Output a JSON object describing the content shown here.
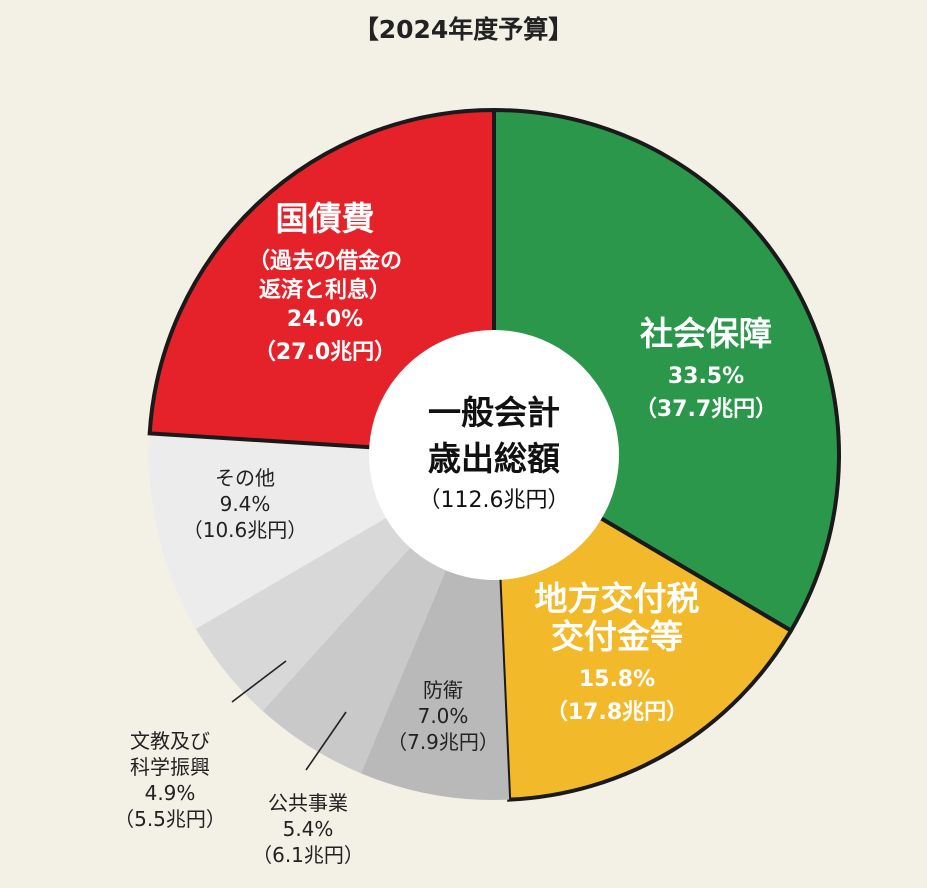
{
  "chart_data": {
    "type": "pie",
    "title": "【2024年度予算】",
    "center": {
      "line1": "一般会計",
      "line2": "歳出総額",
      "amount": "（112.6兆円）"
    },
    "total": 112.6,
    "unit": "兆円",
    "slices": [
      {
        "name_lines": [
          "社会保障"
        ],
        "percent": 33.5,
        "percent_label": "33.5%",
        "value": 37.7,
        "value_label": "（37.7兆円）",
        "color": "#2a974a"
      },
      {
        "name_lines": [
          "地方交付税",
          "交付金等"
        ],
        "percent": 15.8,
        "percent_label": "15.8%",
        "value": 17.8,
        "value_label": "（17.8兆円）",
        "color": "#f2b92b"
      },
      {
        "name_lines": [
          "防衛"
        ],
        "percent": 7.0,
        "percent_label": "7.0%",
        "value": 7.9,
        "value_label": "（7.9兆円）",
        "color": "#b9b9b9"
      },
      {
        "name_lines": [
          "公共事業"
        ],
        "percent": 5.4,
        "percent_label": "5.4%",
        "value": 6.1,
        "value_label": "（6.1兆円）",
        "color": "#c9c9c9"
      },
      {
        "name_lines": [
          "文教及び",
          "科学振興"
        ],
        "percent": 4.9,
        "percent_label": "4.9%",
        "value": 5.5,
        "value_label": "（5.5兆円）",
        "color": "#d8d8d8"
      },
      {
        "name_lines": [
          "その他"
        ],
        "percent": 9.4,
        "percent_label": "9.4%",
        "value": 10.6,
        "value_label": "（10.6兆円）",
        "color": "#ececec"
      },
      {
        "name_lines": [
          "国債費"
        ],
        "sub_lines": [
          "（過去の借金の",
          "返済と利息）"
        ],
        "percent": 24.0,
        "percent_label": "24.0%",
        "value": 27.0,
        "value_label": "（27.0兆円）",
        "color": "#e52229"
      }
    ]
  }
}
